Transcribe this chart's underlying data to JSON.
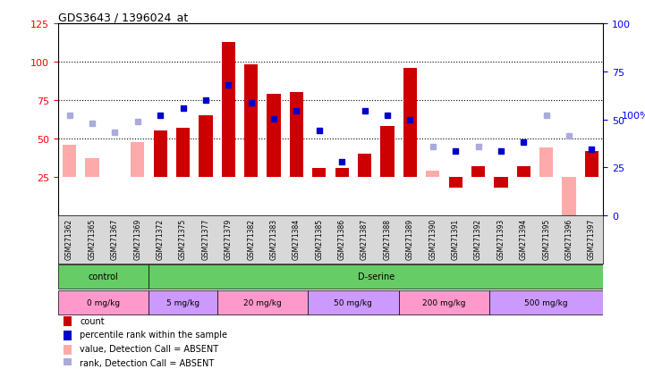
{
  "title": "GDS3643 / 1396024_at",
  "samples": [
    "GSM271362",
    "GSM271365",
    "GSM271367",
    "GSM271369",
    "GSM271372",
    "GSM271375",
    "GSM271377",
    "GSM271379",
    "GSM271382",
    "GSM271383",
    "GSM271384",
    "GSM271385",
    "GSM271386",
    "GSM271387",
    "GSM271388",
    "GSM271389",
    "GSM271390",
    "GSM271391",
    "GSM271392",
    "GSM271393",
    "GSM271394",
    "GSM271395",
    "GSM271396",
    "GSM271397"
  ],
  "counts": [
    25,
    27,
    25,
    25,
    55,
    57,
    65,
    113,
    98,
    79,
    80,
    31,
    31,
    40,
    58,
    96,
    28,
    18,
    32,
    18,
    32,
    27,
    25,
    42
  ],
  "absent_count": [
    true,
    true,
    false,
    true,
    false,
    false,
    false,
    false,
    false,
    false,
    false,
    false,
    false,
    false,
    false,
    false,
    true,
    false,
    false,
    false,
    false,
    true,
    true,
    false
  ],
  "absent_count_values": [
    46,
    37,
    0,
    48,
    0,
    0,
    0,
    0,
    0,
    0,
    0,
    0,
    0,
    0,
    0,
    0,
    29,
    0,
    0,
    0,
    0,
    44,
    0,
    0
  ],
  "ranks": [
    65,
    60,
    54,
    61,
    65,
    70,
    75,
    85,
    73,
    63,
    68,
    55,
    35,
    68,
    65,
    62,
    45,
    42,
    45,
    42,
    48,
    65,
    52,
    43
  ],
  "absent_rank": [
    true,
    true,
    true,
    true,
    false,
    false,
    false,
    false,
    false,
    false,
    false,
    false,
    false,
    false,
    false,
    false,
    true,
    false,
    true,
    false,
    false,
    true,
    true,
    false
  ],
  "agent_groups": [
    {
      "label": "control",
      "start": 0,
      "end": 4,
      "color": "#66cc66"
    },
    {
      "label": "D-serine",
      "start": 4,
      "end": 24,
      "color": "#66cc66"
    }
  ],
  "dose_groups": [
    {
      "label": "0 mg/kg",
      "start": 0,
      "end": 4,
      "color": "#ff99cc"
    },
    {
      "label": "5 mg/kg",
      "start": 4,
      "end": 7,
      "color": "#cc99ff"
    },
    {
      "label": "20 mg/kg",
      "start": 7,
      "end": 11,
      "color": "#ff99cc"
    },
    {
      "label": "50 mg/kg",
      "start": 11,
      "end": 15,
      "color": "#cc99ff"
    },
    {
      "label": "200 mg/kg",
      "start": 15,
      "end": 19,
      "color": "#ff99cc"
    },
    {
      "label": "500 mg/kg",
      "start": 19,
      "end": 24,
      "color": "#cc99ff"
    }
  ],
  "ylim_left": [
    0,
    125
  ],
  "ylim_right": [
    0,
    100
  ],
  "yticks_left": [
    25,
    50,
    75,
    100,
    125
  ],
  "yticks_right": [
    0,
    25,
    50,
    75,
    100
  ],
  "bar_color": "#cc0000",
  "absent_bar_color": "#ffaaaa",
  "rank_color": "#0000cc",
  "absent_rank_color": "#aaaadd",
  "legend_items": [
    {
      "color": "#cc0000",
      "label": "count"
    },
    {
      "color": "#0000cc",
      "label": "percentile rank within the sample"
    },
    {
      "color": "#ffaaaa",
      "label": "value, Detection Call = ABSENT"
    },
    {
      "color": "#aaaadd",
      "label": "rank, Detection Call = ABSENT"
    }
  ]
}
